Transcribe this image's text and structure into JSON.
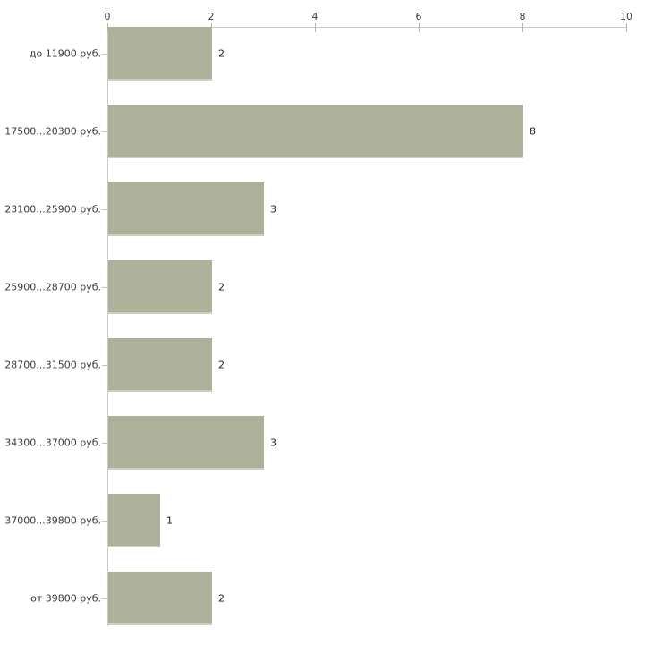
{
  "chart_data": {
    "type": "bar",
    "orientation": "horizontal",
    "title": "",
    "xlabel": "",
    "ylabel": "",
    "categories": [
      "до 11900 руб.",
      "17500...20300 руб.",
      "23100...25900 руб.",
      "25900...28700 руб.",
      "28700...31500 руб.",
      "34300...37000 руб.",
      "37000...39800 руб.",
      "от 39800 руб."
    ],
    "values": [
      2,
      8,
      3,
      2,
      2,
      3,
      1,
      2
    ],
    "x_ticks": [
      0,
      2,
      4,
      6,
      8,
      10
    ],
    "xlim": [
      0,
      10
    ],
    "grid": false,
    "legend": null,
    "axis_position": "top",
    "colors": {
      "bar_fill": "#adb199",
      "axis_line": "#c9c9c9",
      "x_tick": "#b7b98f",
      "category_tick": "#c2c2b2",
      "text": "#3b3b3b",
      "background": "#ffffff"
    }
  }
}
